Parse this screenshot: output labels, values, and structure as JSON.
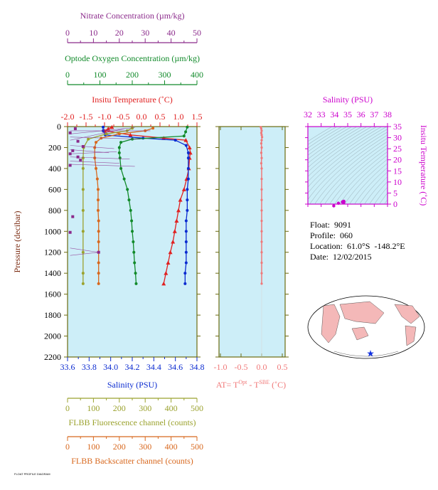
{
  "info": {
    "float_label": "Float:",
    "float_value": "9091",
    "profile_label": "Profile:",
    "profile_value": "060",
    "location_label": "Location:",
    "location_value": "61.0°S  -148.2°E",
    "date_label": "Date:",
    "date_value": "12/02/2015",
    "footnote": "FLOAT PROFILE DIAGRAM"
  },
  "colors": {
    "nitrate": "#8b2a8b",
    "oxygen": "#118a2a",
    "temperature": "#e02020",
    "salinity": "#0a2ad0",
    "fluorescence": "#9ba22e",
    "backscatter": "#d8681e",
    "at": "#f07878",
    "ts": "#cc00cc",
    "panel_bg": "#cdeef8",
    "frame": "#6b6b10"
  },
  "chart_data": [
    {
      "type": "line",
      "name": "profile-panel",
      "y_axis": {
        "label": "Pressure (decibar)",
        "range": [
          0,
          2200
        ],
        "ticks": [
          0,
          200,
          400,
          600,
          800,
          1000,
          1200,
          1400,
          1600,
          1800,
          2000,
          2200
        ]
      },
      "axes": [
        {
          "key": "nitrate",
          "label": "Nitrate Concentration (µm/kg)",
          "range": [
            0,
            50
          ],
          "ticks": [
            0,
            10,
            20,
            30,
            40,
            50
          ]
        },
        {
          "key": "oxygen",
          "label": "Optode Oxygen Concentration (µm/kg)",
          "range": [
            0,
            400
          ],
          "ticks": [
            0,
            100,
            200,
            300,
            400
          ]
        },
        {
          "key": "temperature",
          "label": "Insitu Temperature (˚C)",
          "range": [
            -2.0,
            1.5
          ],
          "ticks": [
            "-2.0",
            "-1.5",
            "-1.0",
            "-0.5",
            "0.0",
            "0.5",
            "1.0",
            "1.5"
          ]
        },
        {
          "key": "salinity",
          "label": "Salinity (PSU)",
          "range": [
            33.6,
            34.8
          ],
          "ticks": [
            "33.6",
            "33.8",
            "34.0",
            "34.2",
            "34.4",
            "34.6",
            "34.8"
          ]
        },
        {
          "key": "fluorescence",
          "label": "FLBB Fluorescence channel (counts)",
          "range": [
            0,
            500
          ],
          "ticks": [
            0,
            100,
            200,
            300,
            400,
            500
          ]
        },
        {
          "key": "backscatter",
          "label": "FLBB Backscatter channel (counts)",
          "range": [
            0,
            500
          ],
          "ticks": [
            0,
            100,
            200,
            300,
            400,
            500
          ]
        }
      ],
      "series": [
        {
          "key": "temperature",
          "marker": "triangle",
          "points": [
            [
              -0.8,
              5
            ],
            [
              -0.9,
              20
            ],
            [
              -1.0,
              40
            ],
            [
              -0.3,
              80
            ],
            [
              0.6,
              110
            ],
            [
              1.2,
              130
            ],
            [
              1.3,
              200
            ],
            [
              1.32,
              250
            ],
            [
              1.3,
              300
            ],
            [
              1.28,
              400
            ],
            [
              1.22,
              500
            ],
            [
              1.15,
              600
            ],
            [
              1.05,
              700
            ],
            [
              1.0,
              800
            ],
            [
              0.95,
              900
            ],
            [
              0.9,
              1000
            ],
            [
              0.85,
              1100
            ],
            [
              0.78,
              1200
            ],
            [
              0.72,
              1300
            ],
            [
              0.66,
              1400
            ],
            [
              0.6,
              1500
            ]
          ]
        },
        {
          "key": "salinity",
          "marker": "circle",
          "points": [
            [
              33.93,
              5
            ],
            [
              33.93,
              40
            ],
            [
              33.95,
              80
            ],
            [
              34.3,
              110
            ],
            [
              34.6,
              130
            ],
            [
              34.7,
              180
            ],
            [
              34.72,
              250
            ],
            [
              34.72,
              300
            ],
            [
              34.72,
              400
            ],
            [
              34.72,
              500
            ],
            [
              34.71,
              600
            ],
            [
              34.71,
              700
            ],
            [
              34.71,
              800
            ],
            [
              34.7,
              900
            ],
            [
              34.7,
              1000
            ],
            [
              34.7,
              1100
            ],
            [
              34.7,
              1200
            ],
            [
              34.7,
              1300
            ],
            [
              34.69,
              1400
            ],
            [
              34.69,
              1500
            ]
          ]
        },
        {
          "key": "oxygen",
          "marker": "circle",
          "points": [
            [
              370,
              5
            ],
            [
              365,
              50
            ],
            [
              360,
              90
            ],
            [
              200,
              120
            ],
            [
              165,
              150
            ],
            [
              160,
              200
            ],
            [
              160,
              250
            ],
            [
              162,
              300
            ],
            [
              165,
              400
            ],
            [
              175,
              500
            ],
            [
              185,
              600
            ],
            [
              190,
              700
            ],
            [
              195,
              800
            ],
            [
              198,
              900
            ],
            [
              200,
              1000
            ],
            [
              203,
              1100
            ],
            [
              205,
              1200
            ],
            [
              207,
              1300
            ],
            [
              210,
              1400
            ],
            [
              212,
              1500
            ]
          ]
        },
        {
          "key": "fluorescence",
          "marker": "circle",
          "points": [
            [
              250,
              15
            ],
            [
              230,
              40
            ],
            [
              150,
              70
            ],
            [
              80,
              120
            ],
            [
              62,
              200
            ],
            [
              60,
              300
            ],
            [
              60,
              400
            ],
            [
              60,
              600
            ],
            [
              60,
              800
            ],
            [
              60,
              1000
            ],
            [
              60,
              1200
            ],
            [
              60,
              1400
            ],
            [
              60,
              1500
            ]
          ]
        },
        {
          "key": "backscatter",
          "marker": "circle",
          "points": [
            [
              330,
              15
            ],
            [
              300,
              40
            ],
            [
              200,
              70
            ],
            [
              130,
              110
            ],
            [
              110,
              150
            ],
            [
              105,
              200
            ],
            [
              105,
              300
            ],
            [
              110,
              400
            ],
            [
              115,
              500
            ],
            [
              118,
              600
            ],
            [
              118,
              700
            ],
            [
              118,
              800
            ],
            [
              120,
              900
            ],
            [
              120,
              1000
            ],
            [
              120,
              1100
            ],
            [
              120,
              1200
            ],
            [
              120,
              1300
            ],
            [
              120,
              1400
            ],
            [
              120,
              1500
            ]
          ]
        },
        {
          "key": "nitrate",
          "marker": "square",
          "points": [
            [
              3,
              20
            ],
            [
              1,
              60
            ],
            [
              4,
              140
            ],
            [
              6,
              190
            ],
            [
              2,
              230
            ],
            [
              1,
              260
            ],
            [
              4,
              290
            ],
            [
              5,
              320
            ],
            [
              1,
              370
            ],
            [
              2,
              860
            ],
            [
              1,
              1010
            ],
            [
              12,
              1200
            ]
          ]
        },
        {
          "key": "nitrate-fan",
          "marker": "none",
          "segments": [
            [
              [
                1,
                40
              ],
              [
                32,
                40
              ]
            ],
            [
              [
                1,
                70
              ],
              [
                26,
                10
              ]
            ],
            [
              [
                1,
                100
              ],
              [
                28,
                120
              ]
            ],
            [
              [
                1,
                130
              ],
              [
                22,
                20
              ]
            ],
            [
              [
                1,
                180
              ],
              [
                18,
                210
              ]
            ],
            [
              [
                1,
                220
              ],
              [
                16,
                250
              ]
            ],
            [
              [
                1,
                260
              ],
              [
                19,
                240
              ]
            ],
            [
              [
                1,
                290
              ],
              [
                24,
                310
              ]
            ],
            [
              [
                1,
                330
              ],
              [
                20,
                350
              ]
            ],
            [
              [
                1,
                360
              ],
              [
                26,
                380
              ]
            ],
            [
              [
                1,
                1160
              ],
              [
                12,
                1200
              ]
            ],
            [
              [
                1,
                1230
              ],
              [
                12,
                1200
              ]
            ]
          ]
        }
      ]
    },
    {
      "type": "scatter",
      "name": "at-panel",
      "xlabel_parts": [
        "AT= T",
        "Opt",
        " - T",
        "SBE",
        " (˚C)"
      ],
      "x_range": [
        -1.0,
        0.5
      ],
      "x_ticks": [
        "-1.0",
        "-0.5",
        "0.0",
        "0.5"
      ],
      "y_range": [
        0,
        2200
      ],
      "points": [
        [
          -0.02,
          5
        ],
        [
          -0.01,
          20
        ],
        [
          0.0,
          40
        ],
        [
          -0.01,
          60
        ],
        [
          0.0,
          80
        ],
        [
          0.01,
          100
        ],
        [
          0.0,
          130
        ],
        [
          -0.01,
          160
        ],
        [
          0.0,
          200
        ],
        [
          -0.01,
          250
        ],
        [
          0.0,
          300
        ],
        [
          -0.01,
          350
        ],
        [
          0.0,
          400
        ],
        [
          0.0,
          500
        ],
        [
          0.0,
          600
        ],
        [
          0.0,
          700
        ],
        [
          0.0,
          800
        ],
        [
          0.0,
          900
        ],
        [
          0.0,
          1000
        ],
        [
          0.0,
          1100
        ],
        [
          0.0,
          1200
        ],
        [
          0.0,
          1300
        ],
        [
          0.0,
          1400
        ],
        [
          0.0,
          1500
        ]
      ]
    },
    {
      "type": "scatter",
      "name": "ts-panel",
      "xlabel": "Salinity (PSU)",
      "x_range": [
        32,
        38
      ],
      "x_ticks": [
        32,
        33,
        34,
        35,
        36,
        37,
        38
      ],
      "ylabel": "Insitu Temperature (˚C)",
      "y_range": [
        0,
        35
      ],
      "y_ticks": [
        0,
        5,
        10,
        15,
        20,
        25,
        30,
        35
      ],
      "points": [
        [
          34.7,
          1.3
        ],
        [
          34.72,
          1.2
        ],
        [
          34.69,
          0.6
        ],
        [
          34.3,
          0.4
        ],
        [
          33.95,
          -0.8
        ],
        [
          34.6,
          1.0
        ]
      ]
    }
  ]
}
